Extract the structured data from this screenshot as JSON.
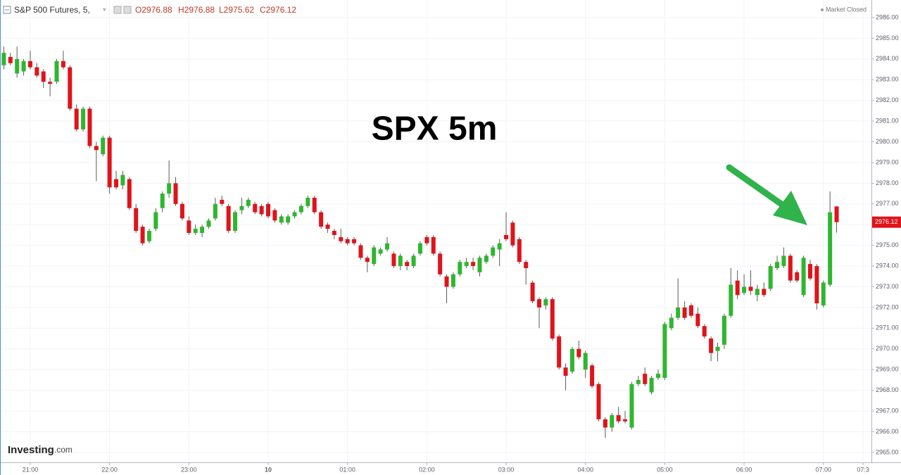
{
  "header": {
    "symbol": "S&P 500 Futures, 5,",
    "open": "O2976.88",
    "high": "H2976.88",
    "low": "L2975.62",
    "close": "C2976.12",
    "status": "Market Closed",
    "brand": "Investing",
    "brand_suffix": ".com"
  },
  "chart_data": {
    "type": "candlestick",
    "title": "SPX 5m",
    "x": [
      "20:40",
      "20:45",
      "20:50",
      "20:55",
      "21:00",
      "21:05",
      "21:10",
      "21:15",
      "21:20",
      "21:25",
      "21:30",
      "21:35",
      "21:40",
      "21:45",
      "21:50",
      "21:55",
      "22:00",
      "22:05",
      "22:10",
      "22:15",
      "22:20",
      "22:25",
      "22:30",
      "22:35",
      "22:40",
      "22:45",
      "22:50",
      "22:55",
      "23:00",
      "23:05",
      "23:10",
      "23:15",
      "23:20",
      "23:25",
      "23:30",
      "23:35",
      "23:40",
      "23:45",
      "23:50",
      "23:55",
      "00:00",
      "00:05",
      "00:10",
      "00:15",
      "00:20",
      "00:25",
      "00:30",
      "00:35",
      "00:40",
      "00:45",
      "00:50",
      "00:55",
      "01:00",
      "01:05",
      "01:10",
      "01:15",
      "01:20",
      "01:25",
      "01:30",
      "01:35",
      "01:40",
      "01:45",
      "01:50",
      "01:55",
      "02:00",
      "02:05",
      "02:10",
      "02:15",
      "02:20",
      "02:25",
      "02:30",
      "02:35",
      "02:40",
      "02:45",
      "02:50",
      "02:55",
      "03:00",
      "03:05",
      "03:10",
      "03:15",
      "03:20",
      "03:25",
      "03:30",
      "03:35",
      "03:40",
      "03:45",
      "03:50",
      "03:55",
      "04:00",
      "04:05",
      "04:10",
      "04:15",
      "04:20",
      "04:25",
      "04:30",
      "04:35",
      "04:40",
      "04:45",
      "04:50",
      "04:55",
      "05:00",
      "05:05",
      "05:10",
      "05:15",
      "05:20",
      "05:25",
      "05:30",
      "05:35",
      "05:40",
      "05:45",
      "05:50",
      "05:55",
      "06:00",
      "06:05",
      "06:10",
      "06:15",
      "06:20",
      "06:25",
      "06:30",
      "06:35",
      "06:40",
      "06:45",
      "06:50",
      "06:55",
      "07:00",
      "07:05",
      "07:10"
    ],
    "open": [
      2983.7,
      2984.1,
      2983.3,
      2983.4,
      2983.9,
      2983.6,
      2983.4,
      2982.9,
      2982.9,
      2983.9,
      2983.6,
      2981.6,
      2980.6,
      2981.6,
      2979.8,
      2979.4,
      2980.2,
      2978.2,
      2977.9,
      2978.2,
      2976.8,
      2975.9,
      2975.2,
      2975.8,
      2976.8,
      2977.5,
      2978.0,
      2977.0,
      2976.2,
      2975.6,
      2975.6,
      2975.9,
      2976.3,
      2977.2,
      2976.9,
      2975.7,
      2976.7,
      2976.9,
      2977.0,
      2976.9,
      2977.0,
      2976.7,
      2976.1,
      2976.1,
      2976.4,
      2976.6,
      2976.9,
      2977.3,
      2976.6,
      2976.0,
      2975.7,
      2975.4,
      2975.3,
      2975.3,
      2975.0,
      2974.4,
      2974.1,
      2974.6,
      2974.8,
      2974.6,
      2974.0,
      2974.2,
      2974.0,
      2974.6,
      2975.4,
      2975.4,
      2974.6,
      2973.5,
      2973.0,
      2973.6,
      2974.0,
      2974.2,
      2973.7,
      2974.2,
      2974.5,
      2974.8,
      2975.5,
      2976.1,
      2975.3,
      2974.2,
      2973.2,
      2972.4,
      2972.1,
      2972.4,
      2970.6,
      2969.1,
      2968.9,
      2970.0,
      2969.0,
      2969.2,
      2968.3,
      2966.6,
      2966.2,
      2966.8,
      2966.6,
      2966.2,
      2968.3,
      2968.8,
      2967.9,
      2968.6,
      2968.6,
      2971.0,
      2971.5,
      2972.0,
      2972.1,
      2971.7,
      2971.1,
      2970.5,
      2969.9,
      2970.2,
      2971.6,
      2973.3,
      2972.7,
      2973.0,
      2972.6,
      2972.9,
      2972.9,
      2973.9,
      2974.0,
      2974.5,
      2973.7,
      2972.6,
      2974.1,
      2974.0,
      2972.1,
      2973.1,
      2976.88
    ],
    "high": [
      2984.6,
      2984.3,
      2984.6,
      2984.0,
      2984.4,
      2983.8,
      2983.5,
      2983.1,
      2984.0,
      2984.4,
      2983.7,
      2981.8,
      2981.7,
      2981.7,
      2980.0,
      2980.3,
      2980.3,
      2978.6,
      2978.6,
      2978.3,
      2977.0,
      2976.0,
      2975.8,
      2976.8,
      2977.6,
      2979.1,
      2978.3,
      2977.1,
      2976.4,
      2976.0,
      2976.0,
      2976.3,
      2977.3,
      2977.4,
      2977.0,
      2976.7,
      2977.3,
      2977.3,
      2977.1,
      2977.0,
      2977.1,
      2976.8,
      2976.5,
      2976.5,
      2976.7,
      2977.0,
      2977.4,
      2977.4,
      2976.7,
      2976.1,
      2975.8,
      2975.8,
      2975.4,
      2975.4,
      2975.1,
      2974.5,
      2975.0,
      2974.9,
      2975.4,
      2974.7,
      2974.6,
      2974.3,
      2974.6,
      2975.2,
      2975.5,
      2975.5,
      2974.7,
      2973.6,
      2973.7,
      2974.3,
      2974.4,
      2974.4,
      2974.5,
      2974.6,
      2975.0,
      2975.3,
      2976.6,
      2976.2,
      2975.4,
      2974.3,
      2973.3,
      2972.5,
      2972.5,
      2972.5,
      2970.7,
      2969.3,
      2970.1,
      2970.4,
      2969.9,
      2969.3,
      2968.4,
      2966.7,
      2966.9,
      2967.2,
      2967.0,
      2968.4,
      2968.7,
      2969.1,
      2968.7,
      2969.0,
      2971.3,
      2971.7,
      2973.4,
      2972.3,
      2972.2,
      2972.0,
      2971.2,
      2970.6,
      2970.3,
      2971.7,
      2973.9,
      2973.8,
      2973.6,
      2973.8,
      2973.1,
      2973.2,
      2974.1,
      2974.5,
      2974.9,
      2974.6,
      2973.8,
      2974.5,
      2974.3,
      2974.1,
      2973.3,
      2977.6,
      2976.88
    ],
    "low": [
      2983.5,
      2983.7,
      2983.1,
      2983.2,
      2983.5,
      2983.1,
      2982.6,
      2982.2,
      2982.8,
      2983.5,
      2981.5,
      2980.5,
      2980.5,
      2979.7,
      2978.1,
      2979.3,
      2977.5,
      2977.7,
      2977.7,
      2976.7,
      2975.6,
      2975.0,
      2975.1,
      2975.7,
      2976.6,
      2977.3,
      2976.9,
      2976.2,
      2975.5,
      2975.5,
      2975.4,
      2975.8,
      2976.2,
      2976.9,
      2975.6,
      2975.6,
      2976.5,
      2976.8,
      2976.5,
      2976.4,
      2976.3,
      2976.1,
      2976.0,
      2976.0,
      2976.3,
      2976.5,
      2976.8,
      2976.5,
      2975.8,
      2975.6,
      2975.3,
      2975.1,
      2975.0,
      2975.0,
      2974.3,
      2973.7,
      2974.0,
      2974.5,
      2974.7,
      2973.9,
      2973.8,
      2973.8,
      2973.9,
      2974.5,
      2975.0,
      2974.5,
      2973.5,
      2972.2,
      2972.9,
      2973.5,
      2973.9,
      2973.8,
      2973.5,
      2974.1,
      2974.4,
      2974.0,
      2975.2,
      2974.9,
      2974.1,
      2973.1,
      2972.2,
      2971.0,
      2971.9,
      2970.4,
      2969.0,
      2968.0,
      2968.8,
      2969.5,
      2968.6,
      2968.1,
      2966.5,
      2965.7,
      2966.0,
      2966.4,
      2966.4,
      2966.1,
      2968.2,
      2968.2,
      2967.8,
      2968.5,
      2968.5,
      2970.9,
      2971.4,
      2971.4,
      2971.5,
      2971.0,
      2970.5,
      2969.4,
      2969.4,
      2970.0,
      2971.5,
      2972.4,
      2972.6,
      2972.6,
      2972.3,
      2972.5,
      2972.8,
      2973.8,
      2973.9,
      2973.2,
      2973.2,
      2972.5,
      2973.3,
      2971.9,
      2972.0,
      2973.0,
      2975.62
    ],
    "close": [
      2984.3,
      2983.8,
      2984.0,
      2983.9,
      2983.6,
      2983.2,
      2982.9,
      2982.8,
      2983.9,
      2983.6,
      2981.6,
      2980.6,
      2981.6,
      2979.8,
      2979.6,
      2980.2,
      2977.8,
      2977.8,
      2978.4,
      2976.8,
      2975.7,
      2975.1,
      2975.7,
      2976.6,
      2977.5,
      2978.0,
      2977.0,
      2976.3,
      2975.6,
      2975.8,
      2975.9,
      2976.2,
      2977.0,
      2977.0,
      2975.7,
      2976.6,
      2976.9,
      2977.2,
      2976.6,
      2976.5,
      2976.4,
      2976.2,
      2976.4,
      2976.4,
      2976.6,
      2976.9,
      2977.3,
      2976.6,
      2975.9,
      2975.8,
      2975.5,
      2975.2,
      2975.1,
      2975.1,
      2974.4,
      2974.2,
      2974.9,
      2974.8,
      2975.1,
      2974.0,
      2974.5,
      2974.0,
      2974.5,
      2975.1,
      2975.1,
      2974.6,
      2973.6,
      2973.0,
      2973.6,
      2974.2,
      2974.2,
      2974.0,
      2974.4,
      2974.5,
      2974.9,
      2975.1,
      2975.3,
      2975.0,
      2974.2,
      2973.9,
      2972.3,
      2972.0,
      2972.4,
      2970.5,
      2969.1,
      2968.7,
      2970.0,
      2969.6,
      2969.8,
      2968.2,
      2966.6,
      2966.2,
      2966.8,
      2966.5,
      2966.5,
      2968.3,
      2968.5,
      2968.3,
      2968.6,
      2968.8,
      2971.2,
      2971.5,
      2972.0,
      2971.5,
      2971.6,
      2971.1,
      2970.6,
      2969.8,
      2970.1,
      2971.6,
      2973.1,
      2972.6,
      2973.0,
      2972.8,
      2972.9,
      2972.6,
      2974.0,
      2974.2,
      2974.5,
      2973.3,
      2973.3,
      2974.4,
      2973.4,
      2972.2,
      2973.2,
      2976.6,
      2976.12
    ],
    "up_color": "#2fb62f",
    "down_color": "#e0131a",
    "wick_color": "#5a5a5a",
    "last_price": 2976.12,
    "ylim": [
      2964.52,
      2986.85
    ],
    "yticks": [
      {
        "value": 2965,
        "label": "2965.00"
      },
      {
        "value": 2966,
        "label": "2966.00"
      },
      {
        "value": 2967,
        "label": "2967.00"
      },
      {
        "value": 2968,
        "label": "2968.00"
      },
      {
        "value": 2969,
        "label": "2969.00"
      },
      {
        "value": 2970,
        "label": "2970.00"
      },
      {
        "value": 2971,
        "label": "2971.00"
      },
      {
        "value": 2972,
        "label": "2972.00"
      },
      {
        "value": 2973,
        "label": "2973.00"
      },
      {
        "value": 2974,
        "label": "2974.00"
      },
      {
        "value": 2975,
        "label": "2975.00"
      },
      {
        "value": 2976,
        "label": "2976.00"
      },
      {
        "value": 2977,
        "label": "2977.00"
      },
      {
        "value": 2978,
        "label": "2978.00"
      },
      {
        "value": 2979,
        "label": "2979.00"
      },
      {
        "value": 2980,
        "label": "2980.00"
      },
      {
        "value": 2981,
        "label": "2981.00"
      },
      {
        "value": 2982,
        "label": "2982.00"
      },
      {
        "value": 2983,
        "label": "2983.00"
      },
      {
        "value": 2984,
        "label": "2984.00"
      },
      {
        "value": 2985,
        "label": "2985.00"
      },
      {
        "value": 2986,
        "label": "2986.00"
      }
    ],
    "xticks": [
      "21:00",
      "22:00",
      "23:00",
      {
        "value": "00:00",
        "label": "10"
      },
      "01:00",
      "02:00",
      "03:00",
      "04:00",
      "05:00",
      "06:00",
      "07:00",
      {
        "value": "07:30",
        "label": "07:3"
      }
    ],
    "grid": true
  }
}
